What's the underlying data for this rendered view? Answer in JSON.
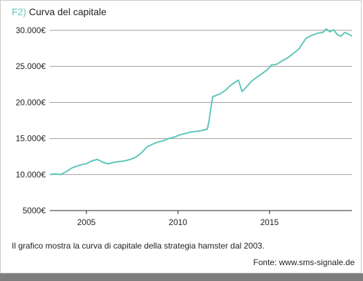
{
  "title_prefix": "F2)",
  "title": "Curva del capitale",
  "caption": "Il grafico mostra la curva di capitale della strategia hamster dal 2003.",
  "source": "Fonte: www.sms-signale.de",
  "colors": {
    "line": "#5cc6b9",
    "accent": "#5cc6b9",
    "grid": "#999999",
    "axis": "#222222"
  },
  "chart_data": {
    "type": "line",
    "title": "Curva del capitale",
    "xlabel": "",
    "ylabel": "",
    "xlim": [
      2003.0,
      2019.5
    ],
    "ylim": [
      5000,
      30000
    ],
    "grid": "horizontal",
    "yticks": [
      {
        "value": 30000,
        "label": "30.000€"
      },
      {
        "value": 25000,
        "label": "25.000€"
      },
      {
        "value": 20000,
        "label": "20.000€"
      },
      {
        "value": 15000,
        "label": "15.000€"
      },
      {
        "value": 10000,
        "label": "10.000€"
      },
      {
        "value": 5000,
        "label": "5000€"
      }
    ],
    "xticks": [
      {
        "value": 2005,
        "label": "2005"
      },
      {
        "value": 2010,
        "label": "2010"
      },
      {
        "value": 2015,
        "label": "2015"
      }
    ],
    "series": [
      {
        "x": [
          2003.0,
          2003.3,
          2003.6,
          2003.9,
          2004.2,
          2004.5,
          2004.8,
          2005.0,
          2005.3,
          2005.6,
          2005.9,
          2006.2,
          2006.5,
          2006.8,
          2007.1,
          2007.4,
          2007.7,
          2008.0,
          2008.3,
          2008.6,
          2008.9,
          2009.2,
          2009.5,
          2009.8,
          2010.1,
          2010.4,
          2010.7,
          2011.0,
          2011.3,
          2011.6,
          2011.7,
          2011.8,
          2011.9,
          2012.0,
          2012.3,
          2012.6,
          2012.8,
          2013.0,
          2013.3,
          2013.5,
          2013.8,
          2014.0,
          2014.3,
          2014.6,
          2014.9,
          2015.1,
          2015.4,
          2015.7,
          2016.0,
          2016.3,
          2016.6,
          2016.8,
          2017.0,
          2017.3,
          2017.6,
          2017.9,
          2018.1,
          2018.3,
          2018.5,
          2018.7,
          2018.9,
          2019.1,
          2019.3,
          2019.5
        ],
        "y": [
          10000,
          10100,
          10000,
          10400,
          10900,
          11200,
          11400,
          11500,
          11900,
          12100,
          11700,
          11500,
          11700,
          11800,
          11900,
          12100,
          12400,
          13000,
          13800,
          14200,
          14500,
          14700,
          15000,
          15200,
          15500,
          15700,
          15900,
          16000,
          16100,
          16300,
          17500,
          19300,
          20800,
          20900,
          21200,
          21700,
          22200,
          22600,
          23100,
          21500,
          22300,
          22900,
          23500,
          24000,
          24600,
          25200,
          25300,
          25800,
          26200,
          26800,
          27400,
          28200,
          28900,
          29300,
          29600,
          29700,
          30200,
          29800,
          30100,
          29400,
          29200,
          29700,
          29500,
          29200
        ]
      }
    ]
  }
}
